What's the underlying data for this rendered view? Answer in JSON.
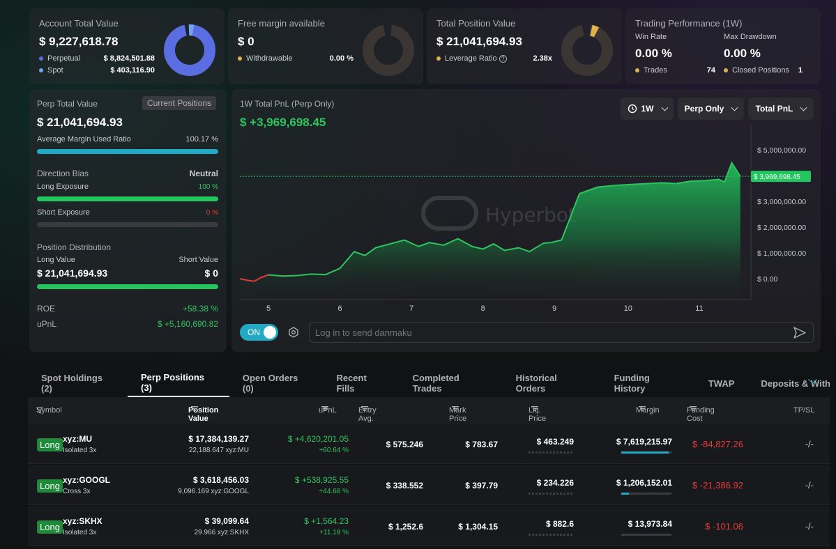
{
  "summary": {
    "account": {
      "title": "Account Total Value",
      "value": "$ 9,227,618.78",
      "perpetual_label": "Perpetual",
      "perpetual_value": "$ 8,824,501.88",
      "spot_label": "Spot",
      "spot_value": "$ 403,116.90",
      "colors": {
        "perpetual": "#5b6ee1",
        "spot": "#6fa6ee"
      }
    },
    "free_margin": {
      "title": "Free margin available",
      "value": "$ 0",
      "withdrawable_label": "Withdrawable",
      "withdrawable_value": "0.00 %"
    },
    "position_value": {
      "title": "Total Position Value",
      "value": "$ 21,041,694.93",
      "leverage_label": "Leverage Ratio",
      "leverage_value": "2.38x"
    },
    "performance": {
      "title": "Trading Performance (1W)",
      "win_rate_label": "Win Rate",
      "win_rate_value": "0.00 %",
      "max_dd_label": "Max Drawdown",
      "max_dd_value": "0.00 %",
      "trades_label": "Trades",
      "trades_value": "74",
      "closed_label": "Closed Positions",
      "closed_value": "1"
    }
  },
  "perp_panel": {
    "title": "Perp Total Value",
    "tab_label": "Current Positions",
    "value": "$ 21,041,694.93",
    "margin_ratio_label": "Average Margin Used Ratio",
    "margin_ratio_value": "100.17 %",
    "margin_ratio_fraction": 1.0,
    "direction_label": "Direction Bias",
    "direction_value": "Neutral",
    "long_exp_label": "Long Exposure",
    "long_exp_value": "100 %",
    "short_exp_label": "Short Exposure",
    "short_exp_value": "0 %",
    "distribution_label": "Position Distribution",
    "long_value_label": "Long Value",
    "short_value_label": "Short Value",
    "long_value": "$ 21,041,694.93",
    "short_value": "$ 0",
    "roe_label": "ROE",
    "roe_value": "+58.38 %",
    "upnl_label": "uPnL",
    "upnl_value": "$ +5,160,690.82"
  },
  "pnl_chart": {
    "title": "1W Total PnL (Perp Only)",
    "value": "$ +3,969,698.45",
    "dropdown_period": "1W",
    "dropdown_scope": "Perp Only",
    "dropdown_metric": "Total PnL",
    "current_label": "$ 3,969,698.45",
    "watermark": "Hyperbot",
    "toggle_label": "ON",
    "danmaku_placeholder": "Log in to send danmaku"
  },
  "chart_data": {
    "type": "area",
    "xlabel": "",
    "ylabel": "",
    "x_ticks": [
      "5",
      "6",
      "7",
      "8",
      "9",
      "10",
      "11"
    ],
    "y_ticks": [
      "$ 5,000,000.00",
      "$ 4,000,000.00",
      "$ 3,000,000.00",
      "$ 2,000,000.00",
      "$ 1,000,000.00",
      "$ 0.00"
    ],
    "ylim": [
      -200000,
      5200000
    ],
    "xlim": [
      4.6,
      11.7
    ],
    "series": [
      {
        "x": [
          4.6,
          4.7,
          4.8,
          4.9,
          5.0,
          5.2,
          5.4,
          5.6,
          5.8,
          6.0,
          6.2,
          6.35,
          6.5,
          6.7,
          6.9,
          7.1,
          7.25,
          7.45,
          7.65,
          7.85,
          8.0,
          8.15,
          8.3,
          8.5,
          8.65,
          8.85,
          8.95,
          9.1,
          9.35,
          9.6,
          9.85,
          10.1,
          10.3,
          10.5,
          10.7,
          10.9,
          11.1,
          11.3,
          11.38,
          11.48,
          11.6
        ],
        "y": [
          0,
          -60000,
          -100000,
          50000,
          150000,
          100000,
          120000,
          180000,
          160000,
          400000,
          1050000,
          900000,
          1200000,
          1350000,
          1500000,
          1250000,
          1400000,
          1300000,
          1550000,
          1250000,
          1150000,
          1350000,
          1100000,
          1200000,
          1050000,
          1380000,
          1400000,
          1500000,
          3300000,
          3550000,
          3620000,
          3660000,
          3690000,
          3720000,
          3690000,
          3780000,
          3800000,
          3850000,
          3750000,
          4500000,
          3969698
        ]
      }
    ],
    "colors": {
      "line": "#2ec55f",
      "negative": "#e53b3b"
    }
  },
  "tabs": [
    {
      "label": "Spot Holdings (2)"
    },
    {
      "label": "Perp Positions (3)"
    },
    {
      "label": "Open Orders (0)"
    },
    {
      "label": "Recent Fills"
    },
    {
      "label": "Completed Trades"
    },
    {
      "label": "Historical Orders"
    },
    {
      "label": "Funding History"
    },
    {
      "label": "TWAP"
    },
    {
      "label": "Deposits & Withdraw"
    }
  ],
  "table": {
    "headers": {
      "symbol": "Symbol",
      "position_value": "Position Value",
      "upnl": "uPnL",
      "entry": "Entry Avg. Price",
      "mark": "Mark Price",
      "liq": "Liq. Price",
      "margin": "Margin",
      "funding": "Funding Cost",
      "tpsl": "TP/SL"
    },
    "rows": [
      {
        "side": "Long",
        "symbol": "xyz:MU",
        "mode": "Isolated 3x",
        "value": "$ 17,384,139.27",
        "size": "22,188.647 xyz:MU",
        "upnl": "$ +4,620,201.05",
        "upnl_pct": "+60.64 %",
        "entry": "$ 575.246",
        "mark": "$ 783.67",
        "liq": "$ 463.249",
        "margin": "$ 7,619,215.97",
        "margin_fill": 0.95,
        "funding": "$ -84,827.26",
        "tpsl": "-/-"
      },
      {
        "side": "Long",
        "symbol": "xyz:GOOGL",
        "mode": "Cross 3x",
        "value": "$ 3,618,456.03",
        "size": "9,096.169 xyz:GOOGL",
        "upnl": "$ +538,925.55",
        "upnl_pct": "+44.68 %",
        "entry": "$ 338.552",
        "mark": "$ 397.79",
        "liq": "$ 234.226",
        "margin": "$ 1,206,152.01",
        "margin_fill": 0.15,
        "funding": "$ -21,386.92",
        "tpsl": "-/-"
      },
      {
        "side": "Long",
        "symbol": "xyz:SKHX",
        "mode": "Isolated 3x",
        "value": "$ 39,099.64",
        "size": "29.966 xyz:SKHX",
        "upnl": "$ +1,564.23",
        "upnl_pct": "+11.19 %",
        "entry": "$ 1,252.6",
        "mark": "$ 1,304.15",
        "liq": "$ 882.6",
        "margin": "$ 13,973.84",
        "margin_fill": 0.0,
        "funding": "$ -101.06",
        "tpsl": "-/-"
      }
    ]
  }
}
